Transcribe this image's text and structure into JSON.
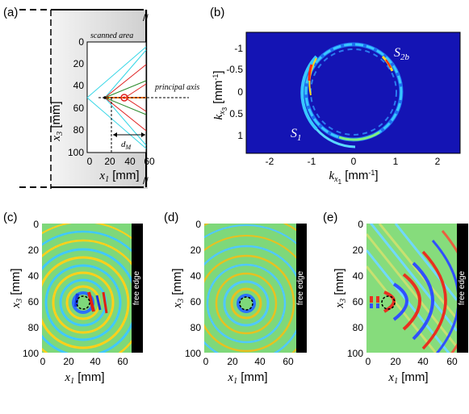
{
  "panel_labels": {
    "a": "(a)",
    "b": "(b)",
    "c": "(c)",
    "d": "(d)",
    "e": "(e)"
  },
  "panel_a": {
    "scanned_area": "scanned area",
    "principal_axis": "principal axis",
    "d_label": "d",
    "d_sub": "M",
    "y_ticks": [
      "0",
      "20",
      "40",
      "60",
      "80",
      "100"
    ],
    "x_ticks": [
      "0",
      "20",
      "40",
      "60"
    ],
    "ylabel": {
      "var": "x",
      "sub": "3",
      "unit": " [mm]"
    },
    "xlabel": {
      "var": "x",
      "sub": "1",
      "unit": " [mm]"
    }
  },
  "panel_b": {
    "y_ticks": [
      "-1",
      "-0.5",
      "0",
      "0.5",
      "1"
    ],
    "x_ticks": [
      "-2",
      "-1",
      "0",
      "1",
      "2"
    ],
    "ylabel": {
      "var": "k",
      "sub": "x",
      "subsub": "3",
      "unit": " [mm",
      "sup": "-1",
      "close": "]"
    },
    "xlabel": {
      "var": "k",
      "sub": "x",
      "subsub": "1",
      "unit": " [mm",
      "sup": "-1",
      "close": "]"
    },
    "s1": {
      "main": "S",
      "sub": "1"
    },
    "s2b": {
      "main": "S",
      "sub": "2b"
    },
    "colors": {
      "bg": "#1414b4",
      "ring": "#30b8ff",
      "hot": "#ff2a10",
      "warm": "#ffd820"
    }
  },
  "wavefield_panels": [
    {
      "id": "c",
      "label": "(c)",
      "y_ticks": [
        "0",
        "20",
        "40",
        "60",
        "80",
        "100"
      ],
      "x_ticks": [
        "0",
        "20",
        "40",
        "60"
      ],
      "ylabel": {
        "var": "x",
        "sub": "3",
        "unit": " [mm]"
      },
      "xlabel": {
        "var": "x",
        "sub": "1",
        "unit": " [mm]"
      },
      "free_edge": "free edge"
    },
    {
      "id": "d",
      "label": "(d)",
      "y_ticks": [
        "0",
        "20",
        "40",
        "60",
        "80",
        "100"
      ],
      "x_ticks": [
        "0",
        "20",
        "40",
        "60"
      ],
      "ylabel": {
        "var": "x",
        "sub": "3",
        "unit": " [mm]"
      },
      "xlabel": {
        "var": "x",
        "sub": "1",
        "unit": " [mm]"
      },
      "free_edge": "free edge"
    },
    {
      "id": "e",
      "label": "(e)",
      "y_ticks": [
        "0",
        "20",
        "40",
        "60",
        "80",
        "100"
      ],
      "x_ticks": [
        "0",
        "20",
        "40",
        "60"
      ],
      "ylabel": {
        "var": "x",
        "sub": "3",
        "unit": " [mm]"
      },
      "xlabel": {
        "var": "x",
        "sub": "1",
        "unit": " [mm]"
      },
      "free_edge": "free edge"
    }
  ]
}
